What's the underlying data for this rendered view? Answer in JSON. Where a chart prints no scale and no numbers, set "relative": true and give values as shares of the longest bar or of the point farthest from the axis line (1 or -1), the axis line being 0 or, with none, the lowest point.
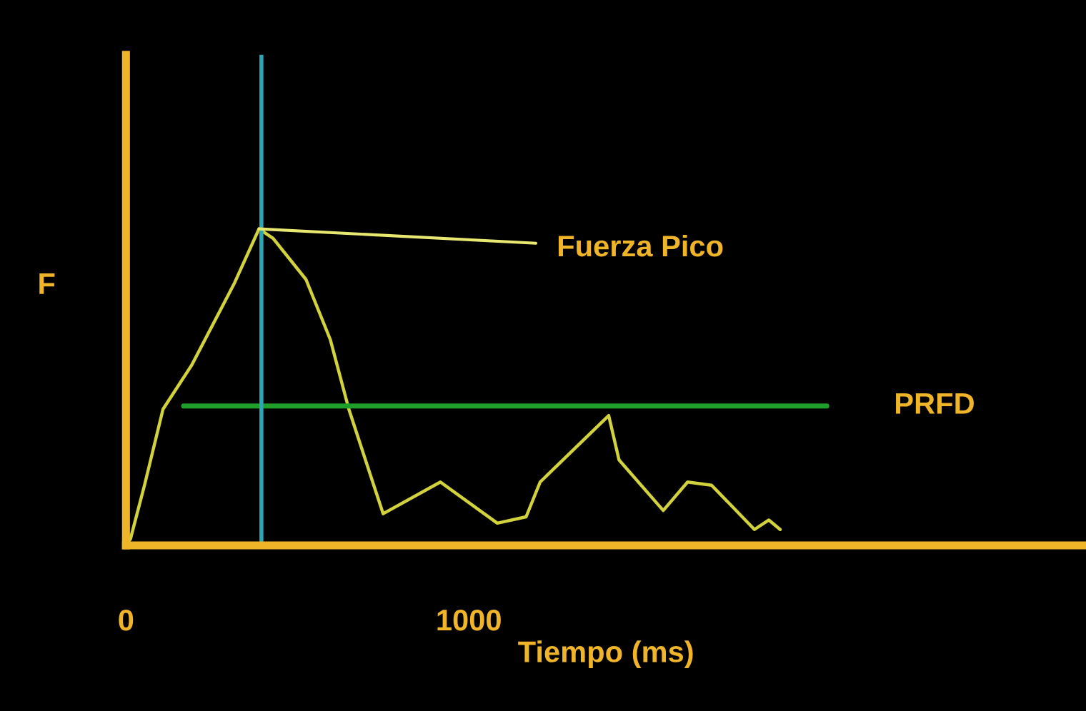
{
  "chart_data": {
    "type": "line",
    "relative": true,
    "xlabel": "Tiempo (ms)",
    "ylabel": "F",
    "x": [
      0,
      13,
      54,
      108,
      192,
      317,
      388,
      429,
      525,
      596,
      650,
      750,
      917,
      1083,
      1167,
      1208,
      1408,
      1438,
      1567,
      1638,
      1708,
      1833,
      1875,
      1908
    ],
    "series": [
      {
        "color": "#d2d23c",
        "values": [
          0,
          0.02,
          0.19,
          0.43,
          0.57,
          0.83,
          1.0,
          0.97,
          0.84,
          0.65,
          0.43,
          0.1,
          0.2,
          0.07,
          0.09,
          0.2,
          0.41,
          0.27,
          0.11,
          0.2,
          0.19,
          0.05,
          0.08,
          0.05
        ]
      }
    ],
    "xlim": [
      0,
      2800
    ],
    "xticks": [
      0,
      1000
    ],
    "ref_lines": [
      {
        "axis": "y",
        "value": 0.44,
        "label": "PRFD",
        "color": "#1e9e2a"
      },
      {
        "axis": "x",
        "value": 395,
        "label": null,
        "color": "#2aa6b4"
      }
    ],
    "annotations": [
      {
        "text": "Fuerza Pico",
        "x": 388,
        "y": 1.0
      }
    ],
    "grid": false,
    "legend": false,
    "marker": "none",
    "line_style": "solid"
  }
}
